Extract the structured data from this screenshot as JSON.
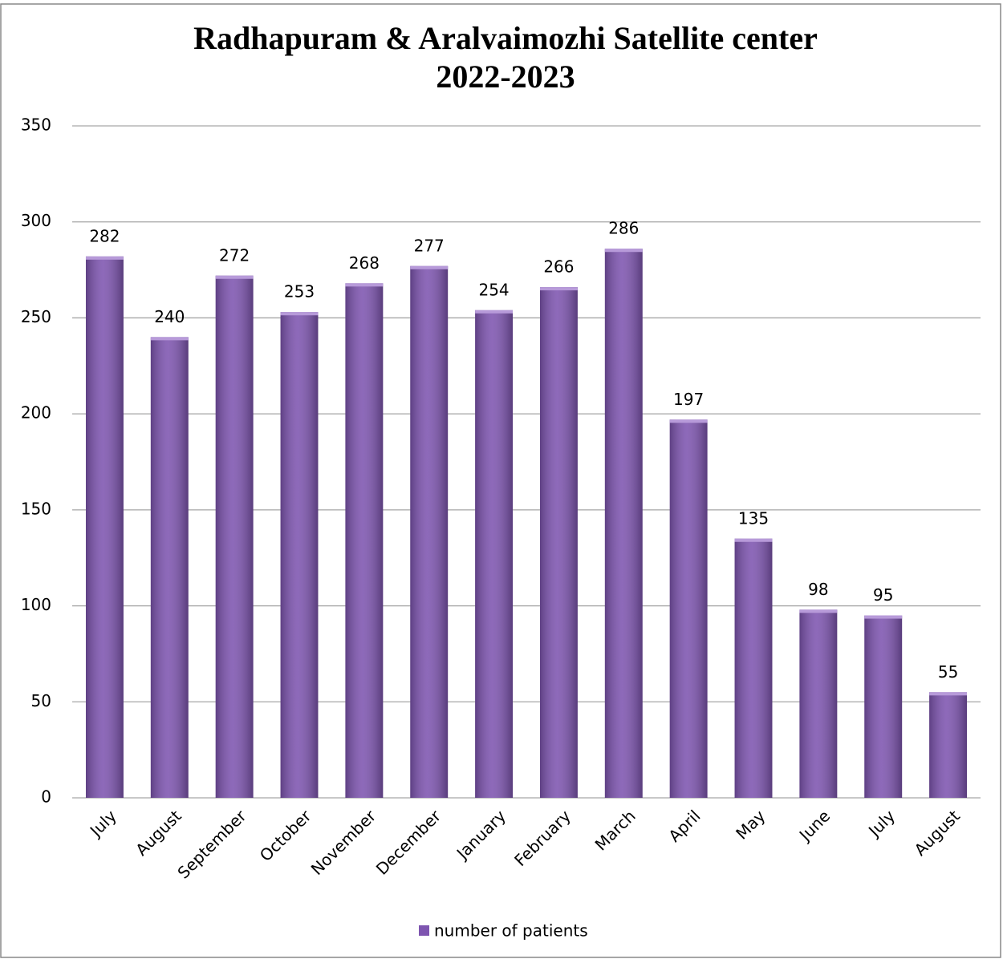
{
  "chart_data": {
    "type": "bar",
    "title": [
      "Radhapuram & Aralvaimozhi Satellite center",
      "2022-2023"
    ],
    "categories": [
      "July",
      "August",
      "September",
      "October",
      "November",
      "December",
      "January",
      "February",
      "March",
      "April",
      "May",
      "June",
      "July",
      "August"
    ],
    "series": [
      {
        "name": "number of patients",
        "color": "#7e55b0",
        "values": [
          282,
          240,
          272,
          253,
          268,
          277,
          254,
          266,
          286,
          197,
          135,
          98,
          95,
          55
        ]
      }
    ],
    "ylim": [
      0,
      350
    ],
    "yticks": [
      0,
      50,
      100,
      150,
      200,
      250,
      300,
      350
    ],
    "grid": true,
    "legend": "bottom"
  }
}
